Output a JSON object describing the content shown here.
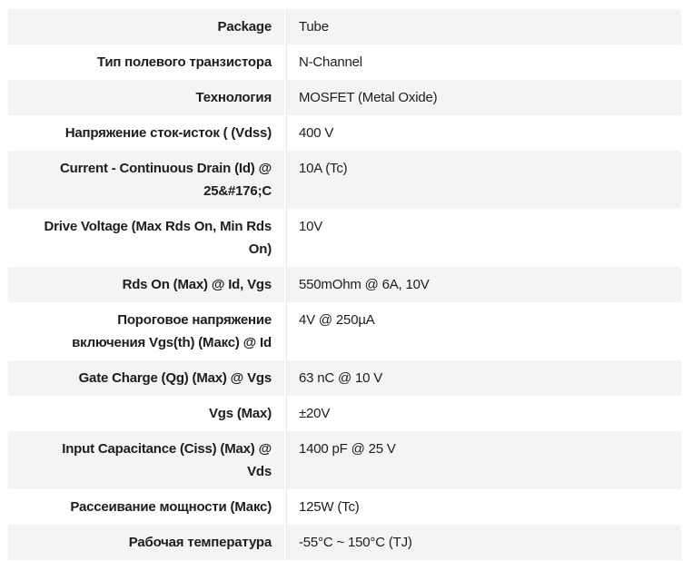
{
  "colors": {
    "background": "#ffffff",
    "row_stripe": "#f4f4f4",
    "text": "#1d1d1d",
    "divider": "#e8e8e8"
  },
  "spec_table": {
    "rows": [
      {
        "label": "Package",
        "value": "Tube"
      },
      {
        "label": "Тип полевого транзистора",
        "value": "N-Channel"
      },
      {
        "label": "Технология",
        "value": "MOSFET (Metal Oxide)"
      },
      {
        "label": "Напряжение сток-исток ( (Vdss)",
        "value": "400 V"
      },
      {
        "label": "Current - Continuous Drain (Id) @\n25&#176;C",
        "value": "10A (Tc)"
      },
      {
        "label": "Drive Voltage (Max Rds On, Min Rds\nOn)",
        "value": "10V"
      },
      {
        "label": "Rds On (Max) @ Id, Vgs",
        "value": "550mOhm @ 6A, 10V"
      },
      {
        "label": "Пороговое напряжение\nвключения Vgs(th) (Макс) @ Id",
        "value": "4V @ 250µA"
      },
      {
        "label": "Gate Charge (Qg) (Max) @ Vgs",
        "value": "63 nC @ 10 V"
      },
      {
        "label": "Vgs (Max)",
        "value": "±20V"
      },
      {
        "label": "Input Capacitance (Ciss) (Max) @\nVds",
        "value": "1400 pF @ 25 V"
      },
      {
        "label": "Рассеивание мощности (Макс)",
        "value": "125W (Tc)"
      },
      {
        "label": "Рабочая температура",
        "value": "-55°C ~ 150°C (TJ)"
      }
    ]
  }
}
